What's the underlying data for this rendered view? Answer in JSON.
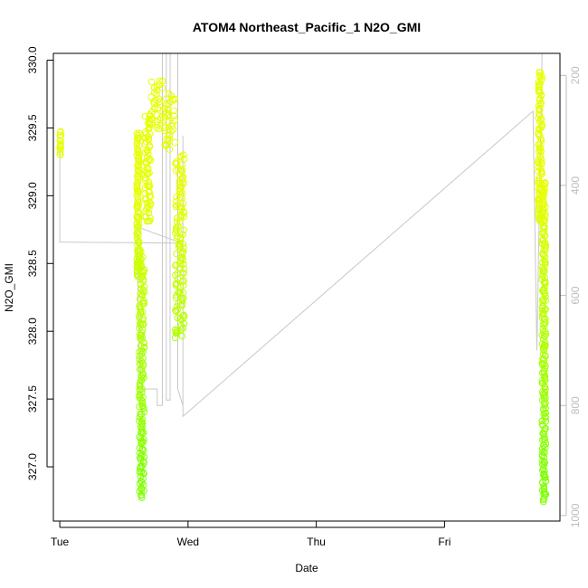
{
  "chart_data": {
    "type": "scatter",
    "title": "ATOM4 Northeast_Pacific_1 N2O_GMI",
    "xlabel": "Date",
    "ylabel": "N2O_GMI",
    "x_ticks": [
      "Tue",
      "Wed",
      "Thu",
      "Fri"
    ],
    "x_range_days": [
      -0.05,
      3.9
    ],
    "ylim": [
      326.6,
      330.05
    ],
    "y_ticks": [
      "327.0",
      "327.5",
      "328.0",
      "328.5",
      "329.0",
      "329.5",
      "330.0"
    ],
    "y2_range": [
      1010,
      160
    ],
    "y2_ticks": [
      "200",
      "400",
      "600",
      "800",
      "1000"
    ],
    "grid": false,
    "series": [
      {
        "kind": "points",
        "color_low": "#7fff00",
        "color_high": "#e6ff00",
        "segments": [
          {
            "day": [
              0.0,
              0.01
            ],
            "y": [
              329.3,
              329.48
            ]
          },
          {
            "day": [
              0.6,
              0.62
            ],
            "y": [
              328.4,
              329.47
            ]
          },
          {
            "day": [
              0.62,
              0.66
            ],
            "y": [
              326.78,
              328.6
            ]
          },
          {
            "day": [
              0.66,
              0.71
            ],
            "y": [
              328.8,
              329.6
            ]
          },
          {
            "day": [
              0.71,
              0.81
            ],
            "y": [
              329.5,
              329.85
            ]
          },
          {
            "day": [
              0.81,
              0.9
            ],
            "y": [
              329.35,
              329.75
            ]
          },
          {
            "day": [
              0.9,
              0.97
            ],
            "y": [
              327.95,
              329.3
            ]
          },
          {
            "day": [
              3.73,
              3.76
            ],
            "y": [
              328.8,
              329.92
            ]
          },
          {
            "day": [
              3.76,
              3.79
            ],
            "y": [
              326.75,
              329.1
            ]
          }
        ]
      },
      {
        "kind": "altitude-line",
        "color": "#c8c8c8",
        "axis": "y2",
        "points": [
          {
            "day": 0.0,
            "alt": 330
          },
          {
            "day": 0.0,
            "alt": 503
          },
          {
            "day": 0.95,
            "alt": 505
          },
          {
            "day": 0.6,
            "alt": 475
          },
          {
            "day": 0.62,
            "alt": 715
          },
          {
            "day": 0.64,
            "alt": 770
          },
          {
            "day": 0.76,
            "alt": 770
          },
          {
            "day": 0.76,
            "alt": 800
          },
          {
            "day": 0.8,
            "alt": 800
          },
          {
            "day": 0.8,
            "alt": 160
          },
          {
            "day": 0.83,
            "alt": 160
          },
          {
            "day": 0.83,
            "alt": 790
          },
          {
            "day": 0.86,
            "alt": 790
          },
          {
            "day": 0.86,
            "alt": 160
          },
          {
            "day": 0.92,
            "alt": 160
          },
          {
            "day": 0.92,
            "alt": 770
          },
          {
            "day": 0.96,
            "alt": 800
          },
          {
            "day": 0.96,
            "alt": 310
          },
          {
            "day": 0.96,
            "alt": 820
          },
          {
            "day": 3.69,
            "alt": 265
          },
          {
            "day": 3.72,
            "alt": 700
          },
          {
            "day": 3.76,
            "alt": 160
          }
        ]
      }
    ]
  }
}
